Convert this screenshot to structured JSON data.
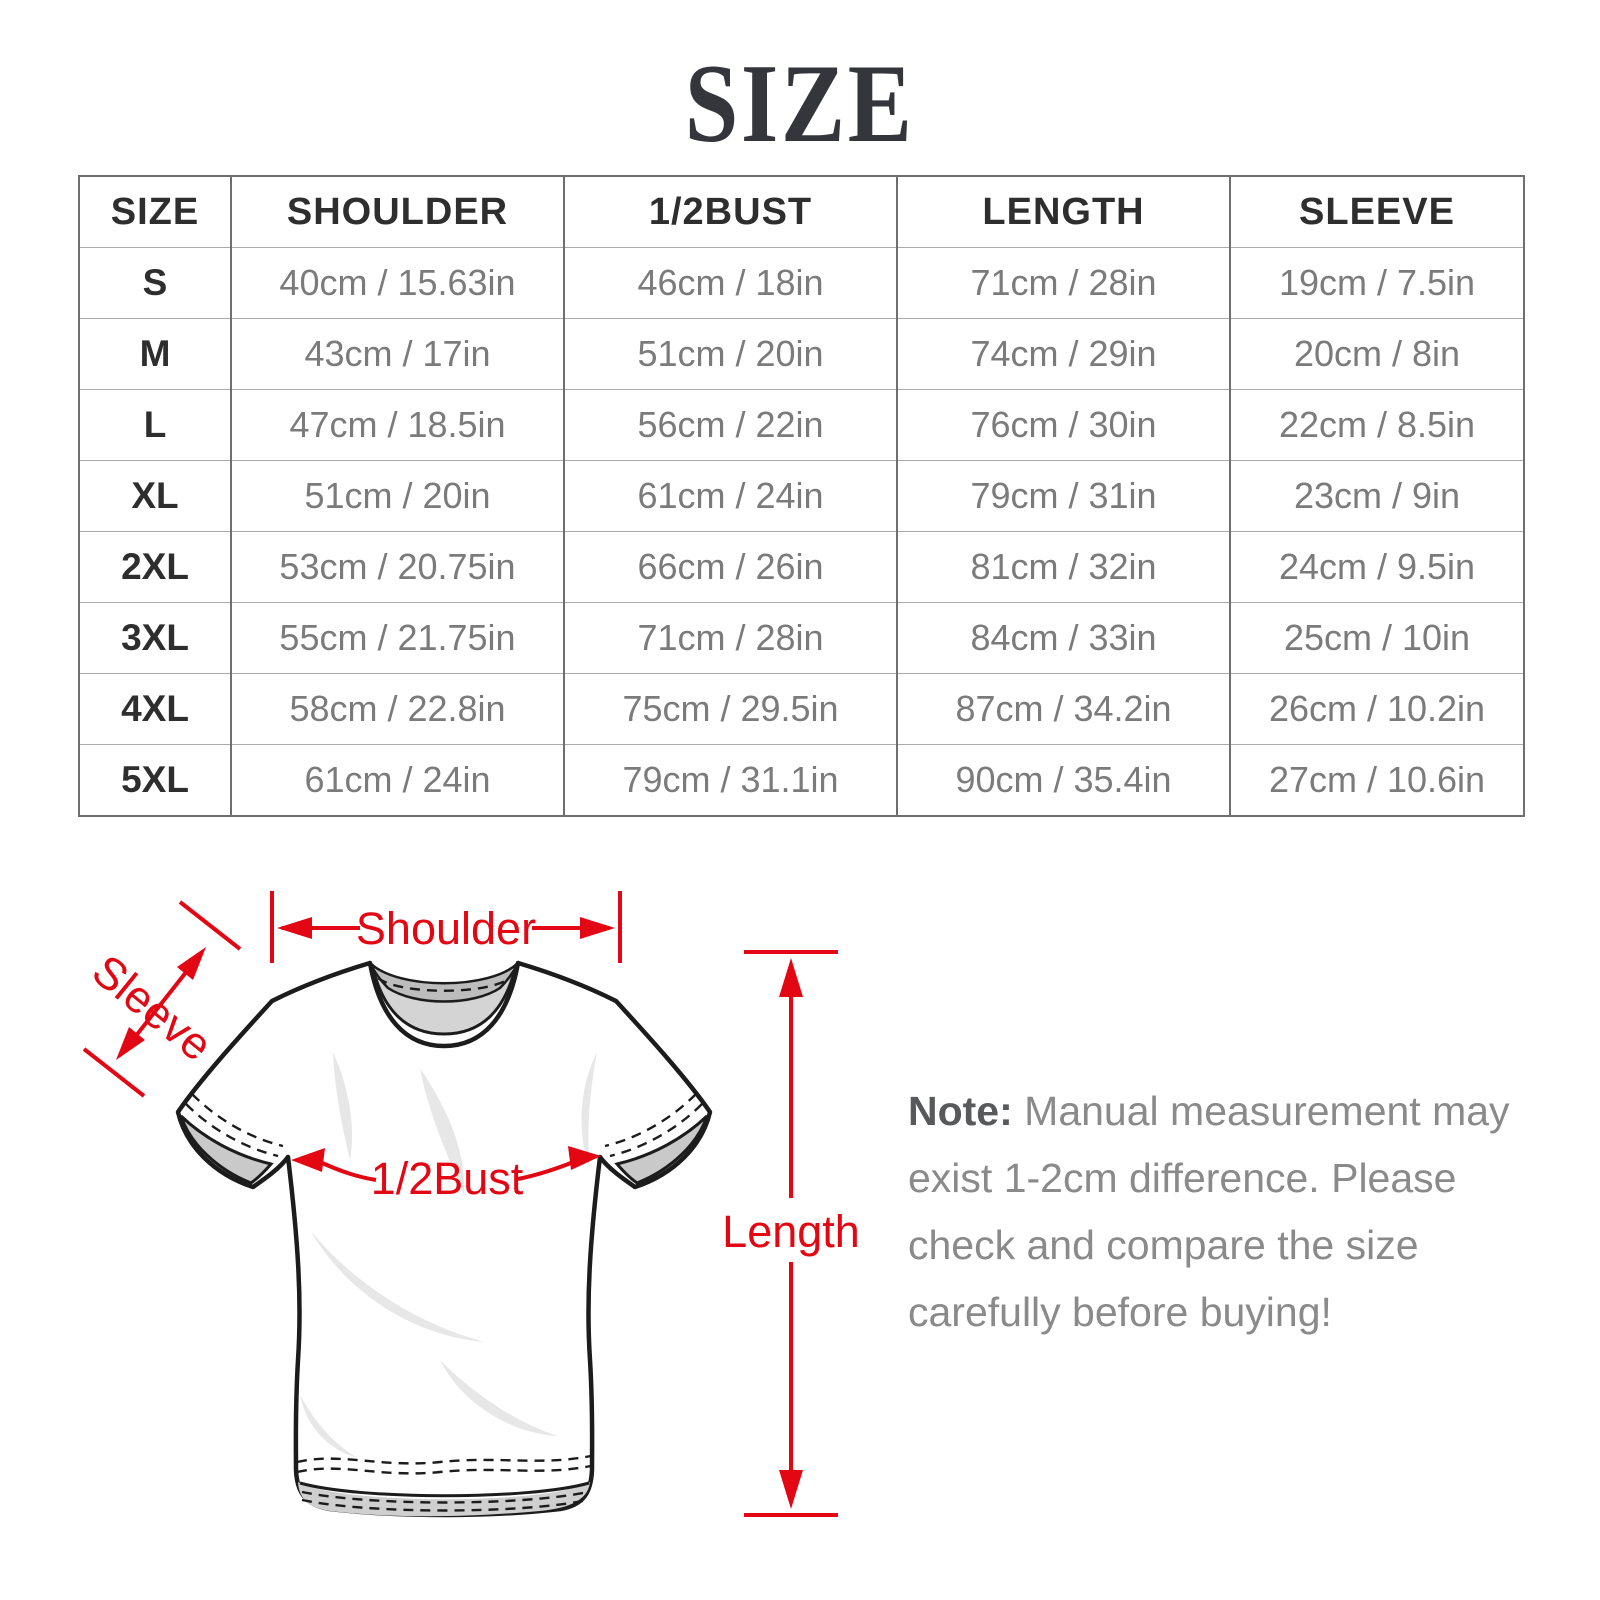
{
  "page": {
    "title": "SIZE",
    "background": "#ffffff"
  },
  "colors": {
    "accent_red": "#e30613",
    "title_color": "#34363b",
    "header_text": "#2e2e2e",
    "cell_text": "#7b7b7b",
    "note_text": "#8a8a8a",
    "border_dark": "#6f6f6f",
    "border_light": "#aaaaaa"
  },
  "table": {
    "columns": [
      "SIZE",
      "SHOULDER",
      "1/2BUST",
      "LENGTH",
      "SLEEVE"
    ],
    "rows": [
      [
        "S",
        "40cm / 15.63in",
        "46cm / 18in",
        "71cm / 28in",
        "19cm / 7.5in"
      ],
      [
        "M",
        "43cm / 17in",
        "51cm / 20in",
        "74cm / 29in",
        "20cm / 8in"
      ],
      [
        "L",
        "47cm / 18.5in",
        "56cm / 22in",
        "76cm / 30in",
        "22cm / 8.5in"
      ],
      [
        "XL",
        "51cm / 20in",
        "61cm / 24in",
        "79cm / 31in",
        "23cm / 9in"
      ],
      [
        "2XL",
        "53cm / 20.75in",
        "66cm / 26in",
        "81cm / 32in",
        "24cm / 9.5in"
      ],
      [
        "3XL",
        "55cm / 21.75in",
        "71cm / 28in",
        "84cm / 33in",
        "25cm / 10in"
      ],
      [
        "4XL",
        "58cm / 22.8in",
        "75cm / 29.5in",
        "87cm / 34.2in",
        "26cm / 10.2in"
      ],
      [
        "5XL",
        "61cm / 24in",
        "79cm / 31.1in",
        "90cm / 35.4in",
        "27cm / 10.6in"
      ]
    ]
  },
  "diagram": {
    "labels": {
      "shoulder": "Shoulder",
      "sleeve": "Sleeve",
      "bust": "1/2Bust",
      "length": "Length"
    }
  },
  "note": {
    "label": "Note:",
    "lines": [
      "Manual measurement may",
      "exist 1-2cm difference. Please",
      "check and compare the size",
      "carefully before buying!"
    ]
  }
}
